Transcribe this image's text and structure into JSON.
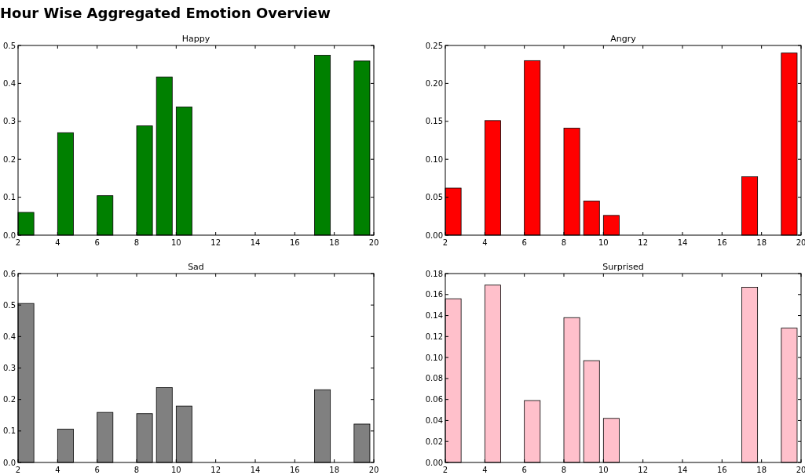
{
  "chart_data": [
    {
      "type": "bar",
      "title": "Happy",
      "annotations": [
        "Hour Wise Aggregated Emotion Overview"
      ],
      "x": [
        2.4,
        4.4,
        6.4,
        8.4,
        9.4,
        10.4,
        17.4,
        19.4
      ],
      "values": [
        0.06,
        0.27,
        0.104,
        0.288,
        0.417,
        0.338,
        0.474,
        0.459
      ],
      "color": "#008000",
      "xlim": [
        2,
        20
      ],
      "xticks": [
        2,
        4,
        6,
        8,
        10,
        12,
        14,
        16,
        18,
        20
      ],
      "ylim": [
        0,
        0.5
      ],
      "yticks": [
        {
          "value": 0,
          "label": "0.0"
        },
        {
          "value": 0.1,
          "label": "0.1"
        },
        {
          "value": 0.2,
          "label": "0.2"
        },
        {
          "value": 0.3,
          "label": "0.3"
        },
        {
          "value": 0.4,
          "label": "0.4"
        },
        {
          "value": 0.5,
          "label": "0.5"
        }
      ],
      "grid": false
    },
    {
      "type": "bar",
      "title": "Angry",
      "x": [
        2.4,
        4.4,
        6.4,
        8.4,
        9.4,
        10.4,
        17.4,
        19.4
      ],
      "values": [
        0.062,
        0.151,
        0.23,
        0.141,
        0.045,
        0.026,
        0.077,
        0.24
      ],
      "color": "#ff0000",
      "xlim": [
        2,
        20
      ],
      "xticks": [
        2,
        4,
        6,
        8,
        10,
        12,
        14,
        16,
        18,
        20
      ],
      "ylim": [
        0,
        0.25
      ],
      "yticks": [
        {
          "value": 0,
          "label": "0.00"
        },
        {
          "value": 0.05,
          "label": "0.05"
        },
        {
          "value": 0.1,
          "label": "0.10"
        },
        {
          "value": 0.15,
          "label": "0.15"
        },
        {
          "value": 0.2,
          "label": "0.20"
        },
        {
          "value": 0.25,
          "label": "0.25"
        }
      ],
      "grid": false
    },
    {
      "type": "bar",
      "title": "Sad",
      "x": [
        2.4,
        4.4,
        6.4,
        8.4,
        9.4,
        10.4,
        17.4,
        19.4
      ],
      "values": [
        0.505,
        0.106,
        0.159,
        0.155,
        0.238,
        0.179,
        0.231,
        0.122
      ],
      "color": "#808080",
      "xlim": [
        2,
        20
      ],
      "xticks": [
        2,
        4,
        6,
        8,
        10,
        12,
        14,
        16,
        18,
        20
      ],
      "ylim": [
        0,
        0.6
      ],
      "yticks": [
        {
          "value": 0,
          "label": "0.0"
        },
        {
          "value": 0.1,
          "label": "0.1"
        },
        {
          "value": 0.2,
          "label": "0.2"
        },
        {
          "value": 0.3,
          "label": "0.3"
        },
        {
          "value": 0.4,
          "label": "0.4"
        },
        {
          "value": 0.5,
          "label": "0.5"
        },
        {
          "value": 0.6,
          "label": "0.6"
        }
      ],
      "grid": false
    },
    {
      "type": "bar",
      "title": "Surprised",
      "x": [
        2.4,
        4.4,
        6.4,
        8.4,
        9.4,
        10.4,
        17.4,
        19.4
      ],
      "values": [
        0.156,
        0.169,
        0.059,
        0.138,
        0.097,
        0.042,
        0.167,
        0.128
      ],
      "color": "#ffc0cb",
      "xlim": [
        2,
        20
      ],
      "xticks": [
        2,
        4,
        6,
        8,
        10,
        12,
        14,
        16,
        18,
        20
      ],
      "ylim": [
        0,
        0.18
      ],
      "yticks": [
        {
          "value": 0,
          "label": "0.00"
        },
        {
          "value": 0.02,
          "label": "0.02"
        },
        {
          "value": 0.04,
          "label": "0.04"
        },
        {
          "value": 0.06,
          "label": "0.06"
        },
        {
          "value": 0.08,
          "label": "0.08"
        },
        {
          "value": 0.1,
          "label": "0.10"
        },
        {
          "value": 0.12,
          "label": "0.12"
        },
        {
          "value": 0.14,
          "label": "0.14"
        },
        {
          "value": 0.16,
          "label": "0.16"
        },
        {
          "value": 0.18,
          "label": "0.18"
        }
      ],
      "grid": false
    }
  ]
}
